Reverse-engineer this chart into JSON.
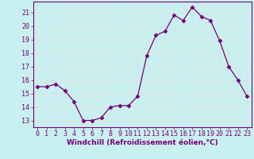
{
  "x": [
    0,
    1,
    2,
    3,
    4,
    5,
    6,
    7,
    8,
    9,
    10,
    11,
    12,
    13,
    14,
    15,
    16,
    17,
    18,
    19,
    20,
    21,
    22,
    23
  ],
  "y": [
    15.5,
    15.5,
    15.7,
    15.2,
    14.4,
    13.0,
    13.0,
    13.2,
    14.0,
    14.1,
    14.1,
    14.8,
    17.8,
    19.3,
    19.6,
    20.8,
    20.4,
    21.4,
    20.7,
    20.4,
    18.9,
    17.0,
    16.0,
    14.8
  ],
  "line_color": "#770077",
  "marker": "D",
  "marker_size": 2.5,
  "bg_color": "#c8f0f0",
  "grid_color": "#e0e0e0",
  "xlabel": "Windchill (Refroidissement éolien,°C)",
  "ylim": [
    12.5,
    21.8
  ],
  "xlim": [
    -0.5,
    23.5
  ],
  "yticks": [
    13,
    14,
    15,
    16,
    17,
    18,
    19,
    20,
    21
  ],
  "xticks": [
    0,
    1,
    2,
    3,
    4,
    5,
    6,
    7,
    8,
    9,
    10,
    11,
    12,
    13,
    14,
    15,
    16,
    17,
    18,
    19,
    20,
    21,
    22,
    23
  ],
  "label_fontsize": 6.5,
  "tick_fontsize": 6.0
}
